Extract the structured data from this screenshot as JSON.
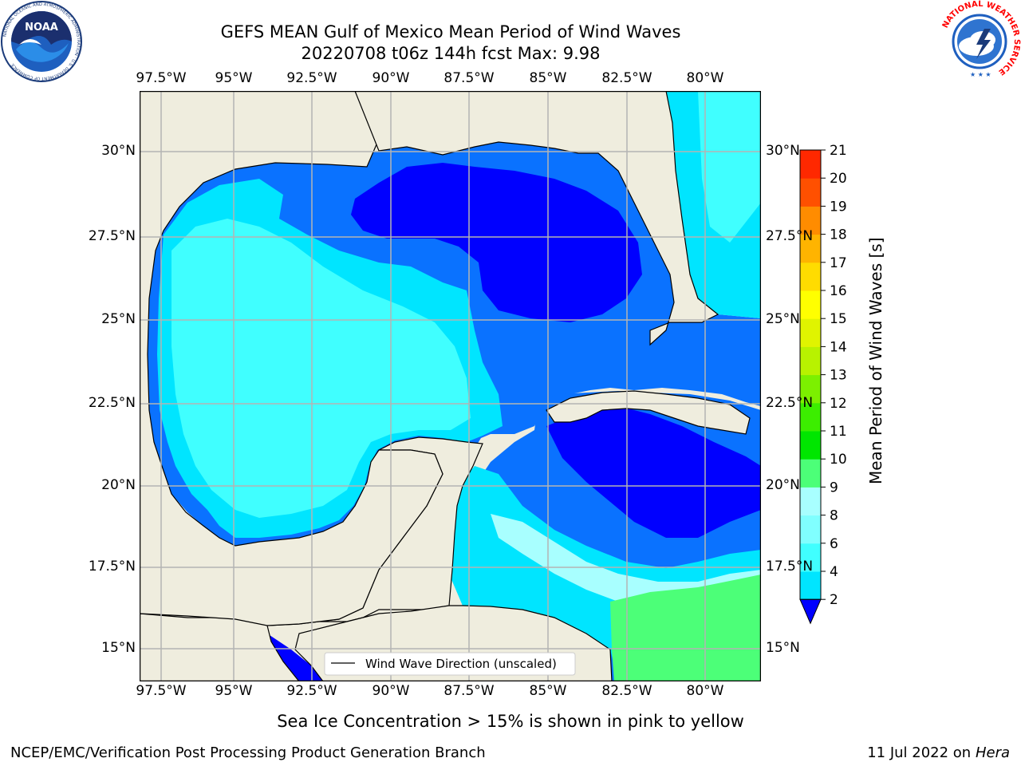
{
  "header": {
    "title": "GEFS MEAN Gulf of Mexico Mean Period of Wind Waves",
    "subtitle": "20220708 t06z 144h fcst   Max: 9.98"
  },
  "logos": {
    "noaa": {
      "text": "NOAA",
      "ring_text": "NATIONAL OCEANIC AND ATMOSPHERIC ADMINISTRATION · U.S. DEPARTMENT OF COMMERCE"
    },
    "nws": {
      "ring_text": "NATIONAL WEATHER SERVICE"
    }
  },
  "map": {
    "lon_labels": [
      "97.5°W",
      "95°W",
      "92.5°W",
      "90°W",
      "87.5°W",
      "85°W",
      "82.5°W",
      "80°W"
    ],
    "lat_labels_left": [
      "30°N",
      "27.5°N",
      "25°N",
      "22.5°N",
      "20°N",
      "17.5°N",
      "15°N"
    ],
    "lat_labels_right": [
      "30°N",
      "27.5°N",
      "25°N",
      "22.5°N",
      "20°N",
      "17.5°N",
      "15°N"
    ],
    "legend_label": "Wind Wave Direction (unscaled)",
    "colors": {
      "land": "#efedde",
      "grid": "#b4b4b4",
      "arrow": "#ff0000"
    }
  },
  "colorbar": {
    "label": "Mean Period of Wind Waves [s]",
    "tick_labels": [
      "2",
      "4",
      "6",
      "8",
      "9",
      "10",
      "11",
      "12",
      "13",
      "14",
      "15",
      "16",
      "17",
      "18",
      "19",
      "20",
      "21"
    ],
    "colors": [
      "#0a72ff",
      "#00e5ff",
      "#40ffff",
      "#80ffff",
      "#a8ffff",
      "#4cff78",
      "#00e600",
      "#3cee00",
      "#7cf000",
      "#b8f200",
      "#e0f400",
      "#ffff00",
      "#ffdc00",
      "#ffb400",
      "#ff8c00",
      "#ff5000",
      "#ff2800",
      "#ff0000"
    ],
    "extend_color": "#0000ff"
  },
  "footer": {
    "note": "Sea Ice Concentration > 15% is shown in pink to yellow",
    "credit": "NCEP/EMC/Verification Post Processing Product Generation Branch",
    "date": "11 Jul 2022 on",
    "machine": "Hera"
  }
}
